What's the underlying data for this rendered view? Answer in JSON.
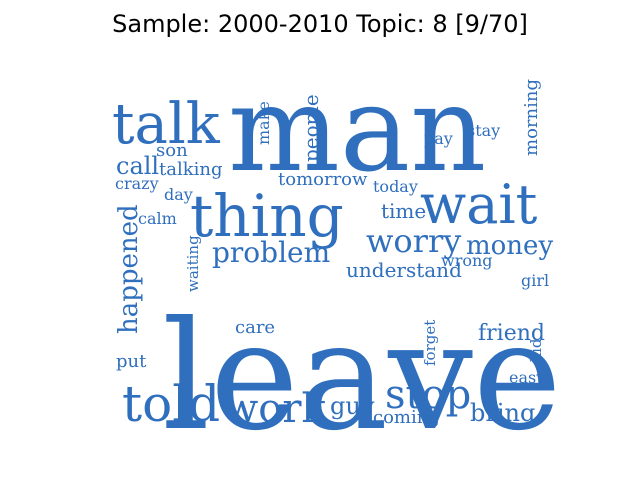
{
  "title": "Sample: 2000-2010 Topic: 8 [9/70]",
  "word_color": "#2f6fbd",
  "words": [
    {
      "text": "man"
    },
    {
      "text": "leave"
    },
    {
      "text": "thing"
    },
    {
      "text": "wait"
    },
    {
      "text": "told"
    },
    {
      "text": "talk"
    },
    {
      "text": "stop"
    },
    {
      "text": "work"
    },
    {
      "text": "worry"
    },
    {
      "text": "problem"
    },
    {
      "text": "money"
    },
    {
      "text": "happened"
    },
    {
      "text": "bring"
    },
    {
      "text": "guy"
    },
    {
      "text": "friend"
    },
    {
      "text": "understand"
    },
    {
      "text": "call"
    },
    {
      "text": "time"
    },
    {
      "text": "people"
    },
    {
      "text": "morning"
    },
    {
      "text": "tomorrow"
    },
    {
      "text": "care"
    },
    {
      "text": "son"
    },
    {
      "text": "talking"
    },
    {
      "text": "today"
    },
    {
      "text": "pay"
    },
    {
      "text": "stay"
    },
    {
      "text": "make"
    },
    {
      "text": "crazy"
    },
    {
      "text": "day"
    },
    {
      "text": "calm"
    },
    {
      "text": "wrong"
    },
    {
      "text": "girl"
    },
    {
      "text": "waiting"
    },
    {
      "text": "forget"
    },
    {
      "text": "kid"
    },
    {
      "text": "easy"
    },
    {
      "text": "put"
    },
    {
      "text": "coming"
    }
  ]
}
